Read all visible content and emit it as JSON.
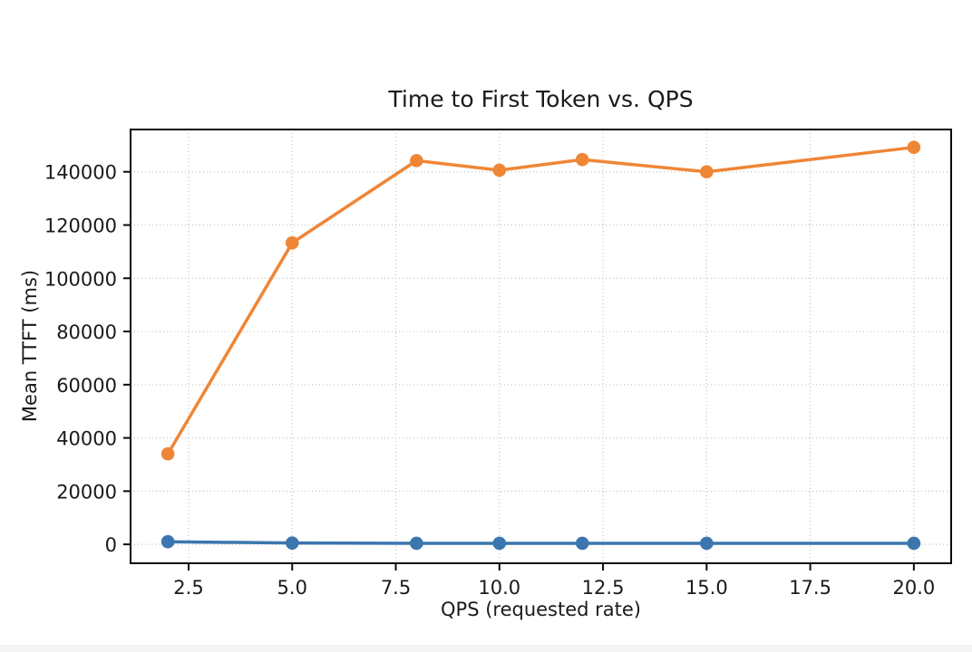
{
  "page": {
    "background_color": "#ffffff",
    "bottom_strip_color": "#f4f4f5"
  },
  "chart_data": {
    "type": "line",
    "title": "Time to First Token vs. QPS",
    "xlabel": "QPS (requested rate)",
    "ylabel": "Mean TTFT (ms)",
    "x": [
      2,
      5,
      8,
      10,
      12,
      15,
      20
    ],
    "series": [
      {
        "name": "blue-series",
        "color": "#3b76af",
        "values": [
          1000,
          500,
          400,
          400,
          400,
          400,
          400
        ]
      },
      {
        "name": "orange-series",
        "color": "#ef8636",
        "values": [
          34000,
          113300,
          144200,
          140600,
          144600,
          140000,
          149200
        ]
      }
    ],
    "xlim": [
      1.1,
      20.9
    ],
    "ylim": [
      -7100,
      155900
    ],
    "xticks": {
      "values": [
        2.5,
        5,
        7.5,
        10,
        12.5,
        15,
        17.5,
        20
      ],
      "labels": [
        "2.5",
        "5.0",
        "7.5",
        "10.0",
        "12.5",
        "15.0",
        "17.5",
        "20.0"
      ]
    },
    "yticks": {
      "values": [
        0,
        20000,
        40000,
        60000,
        80000,
        100000,
        120000,
        140000
      ],
      "labels": [
        "0",
        "20000",
        "40000",
        "60000",
        "80000",
        "100000",
        "120000",
        "140000"
      ]
    },
    "grid": true,
    "grid_style": "dotted",
    "legend": "none",
    "marker": "circle",
    "marker_radius": 7.3
  }
}
